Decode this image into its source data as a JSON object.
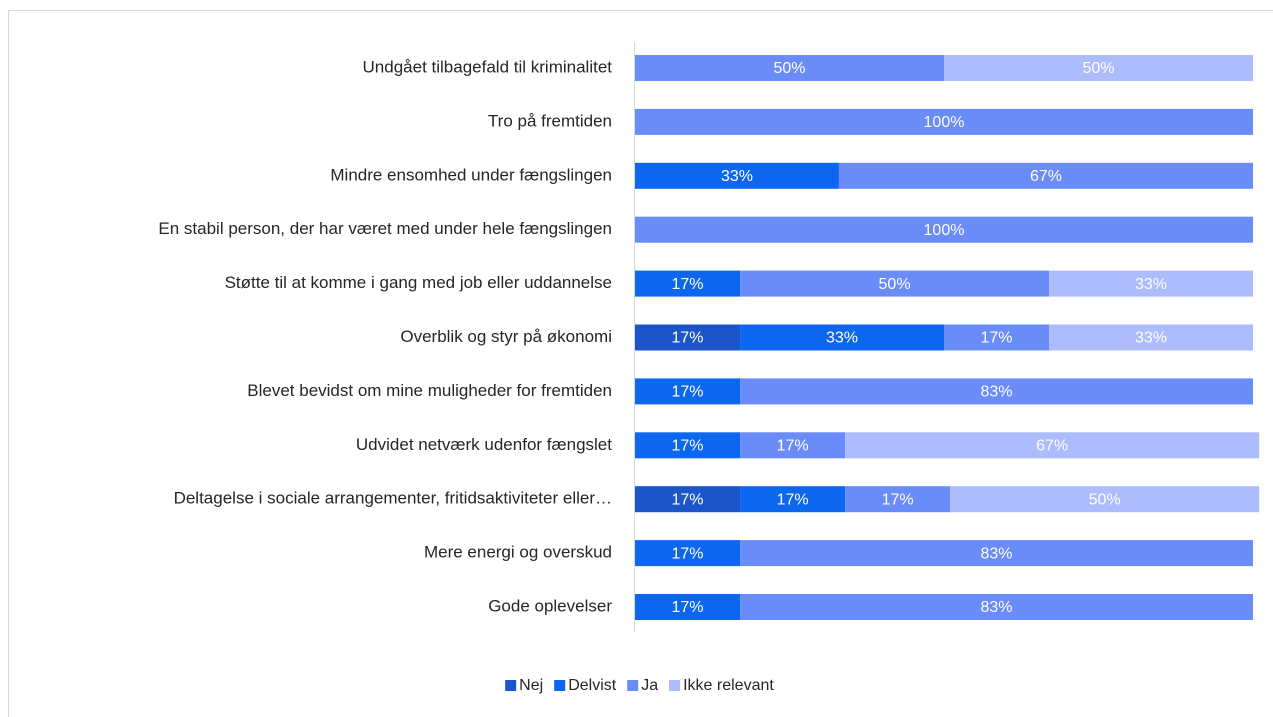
{
  "chart_data": {
    "type": "stacked-bar-horizontal",
    "categories": [
      "Undgået tilbagefald til kriminalitet",
      "Tro på fremtiden",
      "Mindre ensomhed under fængslingen",
      "En stabil person, der har været med under hele fængslingen",
      "Støtte til at komme i gang med job eller uddannelse",
      "Overblik og styr på økonomi",
      "Blevet bevidst om mine muligheder for fremtiden",
      "Udvidet netværk udenfor fængslet",
      "Deltagelse i sociale arrangementer, fritidsaktiviteter eller…",
      "Mere energi og overskud",
      "Gode oplevelser"
    ],
    "series": [
      {
        "name": "Nej",
        "color": "#1b55c9",
        "values": [
          null,
          null,
          null,
          null,
          null,
          17,
          null,
          null,
          17,
          null,
          null
        ],
        "value_labels": [
          null,
          null,
          null,
          null,
          null,
          "17%",
          null,
          null,
          "17%",
          null,
          null
        ]
      },
      {
        "name": "Delvist",
        "color": "#0d66ee",
        "values": [
          null,
          null,
          33,
          null,
          17,
          33,
          17,
          17,
          17,
          17,
          17
        ],
        "value_labels": [
          null,
          null,
          "33%",
          null,
          "17%",
          "33%",
          "17%",
          "17%",
          "17%",
          "17%",
          "17%"
        ]
      },
      {
        "name": "Ja",
        "color": "#6a8cf8",
        "values": [
          50,
          100,
          67,
          100,
          50,
          17,
          83,
          17,
          17,
          83,
          83
        ],
        "value_labels": [
          "50%",
          "100%",
          "67%",
          "100%",
          "50%",
          "17%",
          "83%",
          "17%",
          "17%",
          "83%",
          "83%"
        ]
      },
      {
        "name": "Ikke relevant",
        "color": "#acbcfc",
        "values": [
          50,
          null,
          null,
          null,
          33,
          33,
          null,
          67,
          50,
          null,
          null
        ],
        "value_labels": [
          "50%",
          null,
          null,
          null,
          "33%",
          "33%",
          null,
          "67%",
          "50%",
          null,
          null
        ]
      }
    ],
    "xlim": [
      0,
      100
    ],
    "legend": "bottom"
  }
}
